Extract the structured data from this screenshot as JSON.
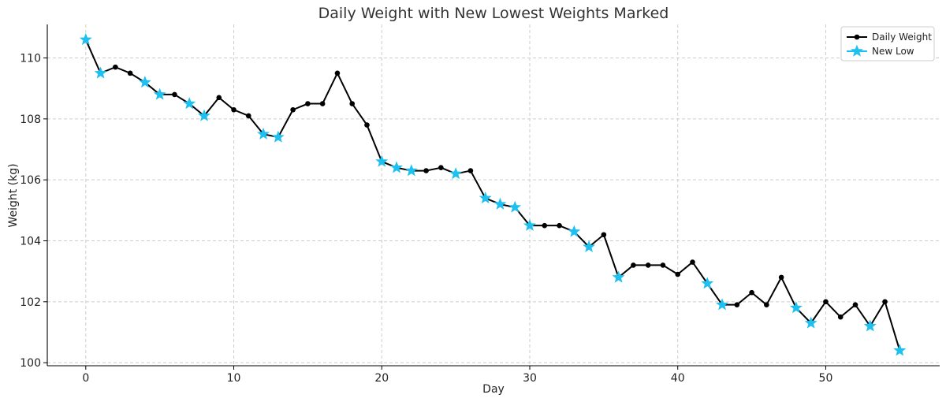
{
  "chart_data": {
    "type": "line",
    "title": "Daily Weight with New Lowest Weights Marked",
    "xlabel": "Day",
    "ylabel": "Weight (kg)",
    "xlim": [
      -2.6,
      57.7
    ],
    "ylim": [
      99.9,
      111.1
    ],
    "xticks": [
      0,
      10,
      20,
      30,
      40,
      50
    ],
    "yticks": [
      100,
      102,
      104,
      106,
      108,
      110
    ],
    "grid": true,
    "legend": "top-right",
    "series": [
      {
        "name": "Daily Weight",
        "color": "#000000",
        "marker": "circle",
        "x": [
          0,
          1,
          2,
          3,
          4,
          5,
          6,
          7,
          8,
          9,
          10,
          11,
          12,
          13,
          14,
          15,
          16,
          17,
          18,
          19,
          20,
          21,
          22,
          23,
          24,
          25,
          26,
          27,
          28,
          29,
          30,
          31,
          32,
          33,
          34,
          35,
          36,
          37,
          38,
          39,
          40,
          41,
          42,
          43,
          44,
          45,
          46,
          47,
          48,
          49,
          50,
          51,
          52,
          53,
          54,
          55
        ],
        "y": [
          110.6,
          109.5,
          109.7,
          109.5,
          109.2,
          108.8,
          108.8,
          108.5,
          108.1,
          108.7,
          108.3,
          108.1,
          107.5,
          107.4,
          108.3,
          108.5,
          108.5,
          109.5,
          108.5,
          107.8,
          106.6,
          106.4,
          106.3,
          106.3,
          106.4,
          106.2,
          106.3,
          105.4,
          105.2,
          105.1,
          104.5,
          104.5,
          104.5,
          104.3,
          103.8,
          104.2,
          102.8,
          103.2,
          103.2,
          103.2,
          102.9,
          103.3,
          102.6,
          101.9,
          101.9,
          102.3,
          101.9,
          102.8,
          101.8,
          101.3,
          102.0,
          101.5,
          101.9,
          101.2,
          102.0,
          100.4
        ]
      },
      {
        "name": "New Low",
        "color": "#1ec0f0",
        "marker": "star",
        "x": [
          0,
          1,
          4,
          5,
          7,
          8,
          12,
          13,
          20,
          21,
          22,
          25,
          27,
          28,
          29,
          30,
          33,
          34,
          36,
          42,
          43,
          48,
          49,
          53,
          55
        ],
        "y": [
          110.6,
          109.5,
          109.2,
          108.8,
          108.5,
          108.1,
          107.5,
          107.4,
          106.6,
          106.4,
          106.3,
          106.2,
          105.4,
          105.2,
          105.1,
          104.5,
          104.3,
          103.8,
          102.8,
          102.6,
          101.9,
          101.8,
          101.3,
          101.2,
          100.4
        ]
      }
    ]
  }
}
